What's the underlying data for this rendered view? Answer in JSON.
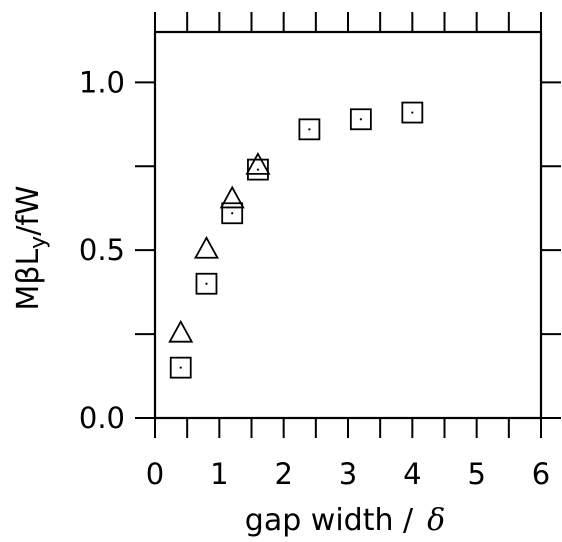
{
  "chart_data": {
    "type": "scatter",
    "title": "",
    "xlabel": "gap width  /",
    "xlabel_symbol": "δ",
    "ylabel_parts": [
      "Mβ",
      "L",
      "y",
      "/fW"
    ],
    "xlim": [
      0,
      6
    ],
    "ylim": [
      0,
      1.15
    ],
    "x_ticks": [
      0,
      1,
      2,
      3,
      4,
      5,
      6
    ],
    "x_tick_labels": [
      "0",
      "1",
      "2",
      "3",
      "4",
      "5",
      "6"
    ],
    "y_ticks": [
      0.0,
      0.5,
      1.0
    ],
    "y_tick_labels": [
      "0.0",
      "0.5",
      "1.0"
    ],
    "x_minor_step": 0.5,
    "y_minor_step": 0.25,
    "grid": false,
    "series": [
      {
        "marker": "triangle",
        "x": [
          0.4,
          0.8,
          1.2,
          1.6
        ],
        "y": [
          0.25,
          0.5,
          0.65,
          0.75
        ]
      },
      {
        "marker": "square",
        "x": [
          0.4,
          0.8,
          1.2,
          1.6,
          2.4,
          3.2,
          4.0
        ],
        "y": [
          0.15,
          0.4,
          0.61,
          0.74,
          0.86,
          0.89,
          0.91
        ]
      }
    ]
  }
}
